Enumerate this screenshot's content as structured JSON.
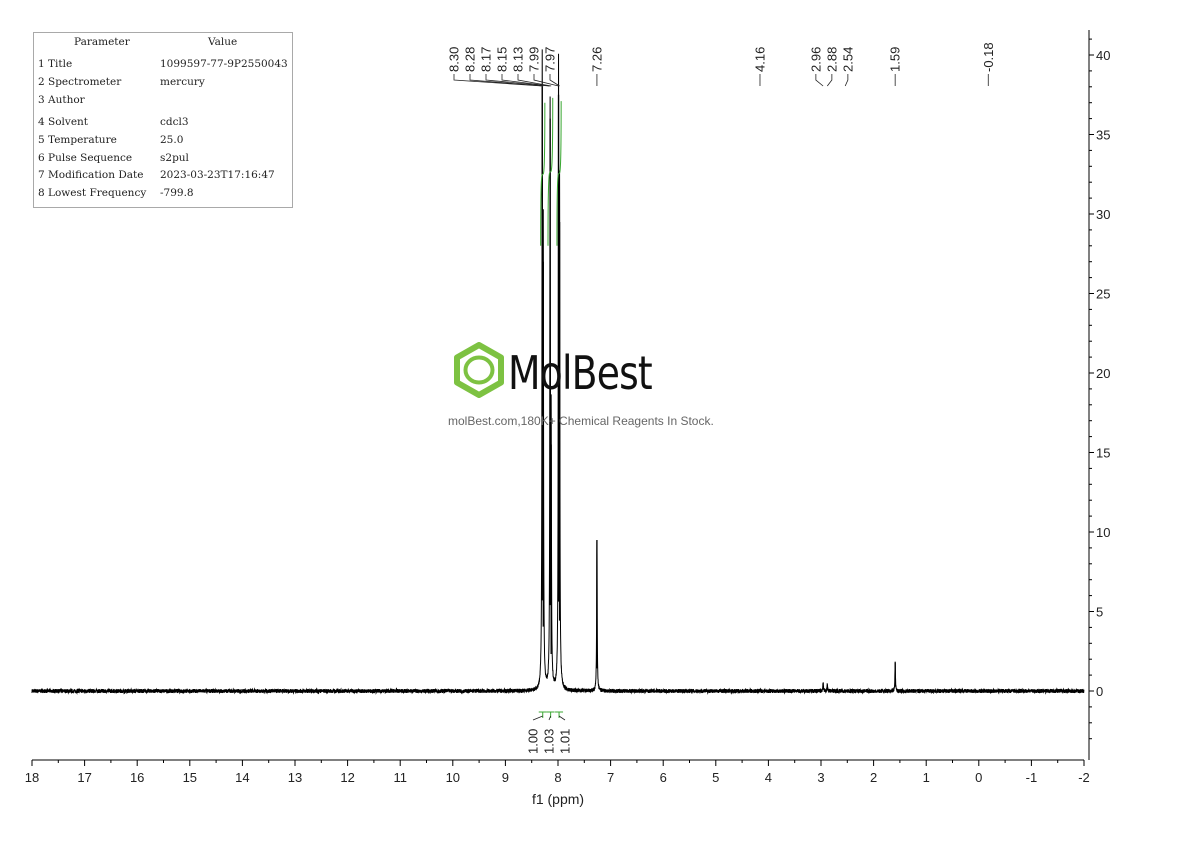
{
  "parameters": {
    "header": {
      "param": "Parameter",
      "value": "Value"
    },
    "rows": [
      {
        "param": "1 Title",
        "value": "1099597-77-9P2550043"
      },
      {
        "param": "2 Spectrometer",
        "value": "mercury"
      },
      {
        "param": "3 Author",
        "value": ""
      },
      {
        "param": "4 Solvent",
        "value": "cdcl3"
      },
      {
        "param": "5 Temperature",
        "value": "25.0"
      },
      {
        "param": "6 Pulse Sequence",
        "value": "s2pul"
      },
      {
        "param": "7 Modification Date",
        "value": "2023-03-23T17:16:47"
      },
      {
        "param": "8 Lowest Frequency",
        "value": "-799.8"
      }
    ]
  },
  "watermark": {
    "name": "MolBest",
    "tagline": "molBest.com,180K+ Chemical Reagents In Stock.",
    "brand_color": "#7dc242"
  },
  "chart_data": {
    "type": "line",
    "title": "",
    "xlabel": "f1 (ppm)",
    "ylabel": "",
    "xlim": [
      18,
      -2
    ],
    "ylim": [
      -4,
      42
    ],
    "x_ticks": [
      "18",
      "17",
      "16",
      "15",
      "14",
      "13",
      "12",
      "11",
      "10",
      "9",
      "8",
      "7",
      "6",
      "5",
      "4",
      "3",
      "2",
      "1",
      "0",
      "-1",
      "-2"
    ],
    "y_ticks": [
      "40",
      "35",
      "30",
      "25",
      "20",
      "15",
      "10",
      "5",
      "0"
    ],
    "grid": false,
    "series": [
      {
        "peaks": [
          {
            "ppm": 8.3,
            "height": 38.0
          },
          {
            "ppm": 8.28,
            "height": 27.0
          },
          {
            "ppm": 8.15,
            "height": 36.0
          },
          {
            "ppm": 8.13,
            "height": 15.5
          },
          {
            "ppm": 7.99,
            "height": 37.5
          },
          {
            "ppm": 7.97,
            "height": 29.5
          },
          {
            "ppm": 7.26,
            "height": 9.5
          },
          {
            "ppm": 2.96,
            "height": 0.5
          },
          {
            "ppm": 2.88,
            "height": 0.4
          },
          {
            "ppm": 1.59,
            "height": 1.8
          }
        ]
      }
    ],
    "peak_labels": [
      "8.30",
      "8.28",
      "8.17",
      "8.15",
      "8.13",
      "7.99",
      "7.97",
      "7.26",
      "4.16",
      "2.96",
      "2.88",
      "2.54",
      "1.59",
      "-0.18"
    ],
    "peak_label_groups": [
      {
        "ppm": [
          8.3,
          8.28,
          8.17,
          8.15,
          8.13,
          7.99,
          7.97
        ]
      },
      {
        "ppm": [
          7.26
        ]
      },
      {
        "ppm": [
          4.16
        ]
      },
      {
        "ppm": [
          2.96,
          2.88,
          2.54
        ]
      },
      {
        "ppm": [
          1.59
        ]
      },
      {
        "ppm": [
          -0.18
        ]
      }
    ],
    "integrals": [
      {
        "ppm": 8.29,
        "value": "1.00"
      },
      {
        "ppm": 8.14,
        "value": "1.03"
      },
      {
        "ppm": 7.98,
        "value": "1.01"
      }
    ],
    "integral_color": "#3aa832",
    "line_color": "#000000"
  }
}
